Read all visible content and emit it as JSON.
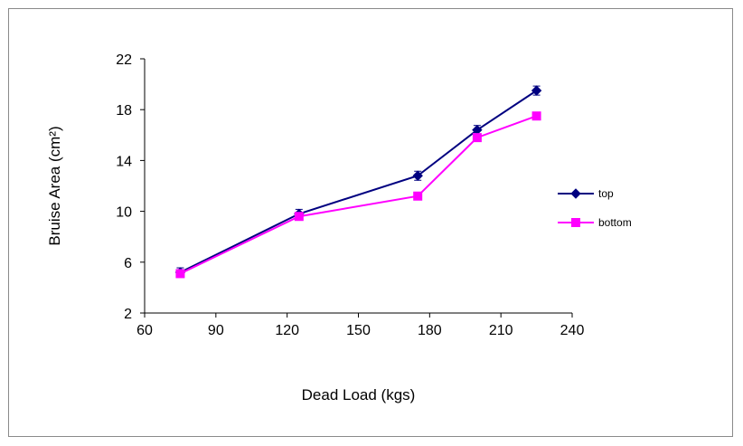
{
  "chart_data": {
    "type": "line",
    "title": "",
    "xlabel": "Dead Load (kgs)",
    "ylabel": "Bruise Area (cm²)",
    "xlim": [
      60,
      240
    ],
    "ylim": [
      2,
      22
    ],
    "xticks": [
      60,
      90,
      120,
      150,
      180,
      210,
      240
    ],
    "yticks": [
      2,
      6,
      10,
      14,
      18,
      22
    ],
    "grid": false,
    "legend_position": "right",
    "series": [
      {
        "name": "top",
        "color": "#000080",
        "marker": "diamond",
        "error_bars": true,
        "x": [
          75,
          125,
          175,
          200,
          225
        ],
        "y": [
          5.2,
          9.8,
          12.8,
          16.4,
          19.5
        ]
      },
      {
        "name": "bottom",
        "color": "#ff00ff",
        "marker": "square",
        "x": [
          75,
          125,
          175,
          200,
          225
        ],
        "y": [
          5.1,
          9.6,
          11.2,
          15.8,
          17.5
        ]
      }
    ]
  }
}
